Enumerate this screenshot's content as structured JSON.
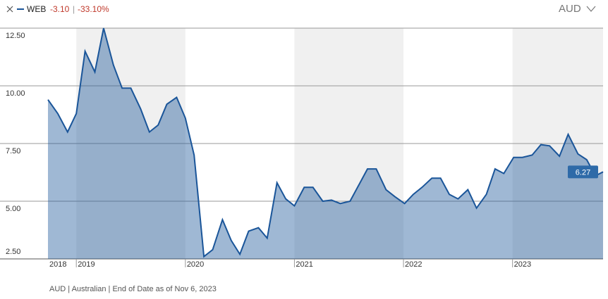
{
  "header": {
    "change": "-3.10",
    "change_percent": "-33.10%",
    "currency": "AUD"
  },
  "footer": "AUD | Australian | End of Date as of Nov 6, 2023",
  "chart_data": {
    "type": "area",
    "x": [
      2018.74,
      2018.83,
      2018.92,
      2019.0,
      2019.08,
      2019.17,
      2019.25,
      2019.34,
      2019.42,
      2019.5,
      2019.59,
      2019.67,
      2019.75,
      2019.83,
      2019.92,
      2020.0,
      2020.08,
      2020.17,
      2020.25,
      2020.34,
      2020.42,
      2020.5,
      2020.58,
      2020.67,
      2020.75,
      2020.84,
      2020.92,
      2021.0,
      2021.09,
      2021.17,
      2021.26,
      2021.34,
      2021.42,
      2021.51,
      2021.59,
      2021.67,
      2021.75,
      2021.84,
      2021.92,
      2022.01,
      2022.09,
      2022.17,
      2022.26,
      2022.34,
      2022.42,
      2022.5,
      2022.59,
      2022.67,
      2022.76,
      2022.84,
      2022.92,
      2023.01,
      2023.09,
      2023.18,
      2023.26,
      2023.34,
      2023.43,
      2023.51,
      2023.6,
      2023.68,
      2023.76,
      2023.83
    ],
    "series": [
      {
        "name": "WEB",
        "color": "#1a5599",
        "values": [
          9.4,
          8.8,
          8.0,
          8.8,
          11.5,
          10.6,
          12.5,
          10.9,
          9.9,
          9.9,
          9.0,
          8.0,
          8.3,
          9.2,
          9.5,
          8.6,
          7.0,
          2.6,
          2.9,
          4.2,
          3.3,
          2.7,
          3.7,
          3.85,
          3.4,
          5.8,
          5.1,
          4.8,
          5.6,
          5.6,
          5.0,
          5.05,
          4.9,
          5.0,
          5.7,
          6.4,
          6.4,
          5.5,
          5.2,
          4.9,
          5.3,
          5.6,
          6.0,
          6.0,
          5.3,
          5.1,
          5.5,
          4.7,
          5.3,
          6.4,
          6.2,
          6.9,
          6.9,
          7.0,
          7.45,
          7.4,
          6.95,
          7.9,
          7.05,
          6.8,
          6.1,
          6.27
        ]
      }
    ],
    "xlim": [
      2018.74,
      2023.83
    ],
    "xticks": [
      2018,
      2019,
      2020,
      2021,
      2022,
      2023
    ],
    "ylim": [
      2.5,
      12.5
    ],
    "yticks": [
      {
        "value": 2.5,
        "label": "2.50"
      },
      {
        "value": 5,
        "label": "5.00"
      },
      {
        "value": 7.5,
        "label": "7.50"
      },
      {
        "value": 10,
        "label": "10.00"
      },
      {
        "value": 12.5,
        "label": "12.50"
      }
    ],
    "grid": true
  }
}
